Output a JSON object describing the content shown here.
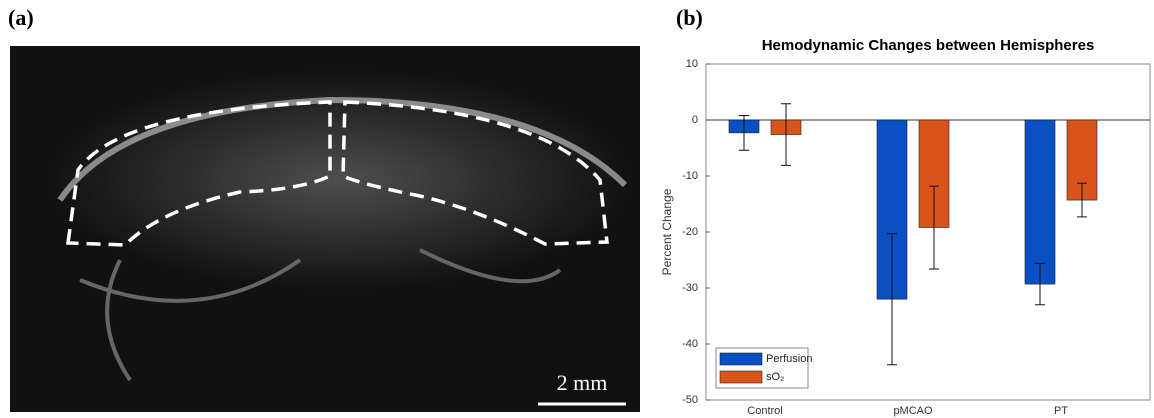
{
  "panel_labels": [
    "(a)",
    "(b)"
  ],
  "image": {
    "scale_bar": "2 mm"
  },
  "chart_data": {
    "type": "bar",
    "title": "Hemodynamic Changes between Hemispheres",
    "y_label": "Percent Change",
    "categories": [
      "Control",
      "pMCAO",
      "PT"
    ],
    "series": [
      {
        "name": "Perfusion",
        "color": "#0b4fc4",
        "values": [
          -2.3,
          -32,
          -29.3
        ],
        "errors": [
          3.1,
          11.7,
          3.7
        ]
      },
      {
        "name": "sO₂",
        "color": "#d9541a",
        "values": [
          -2.6,
          -19.2,
          -14.3
        ],
        "errors": [
          5.5,
          7.4,
          3.0
        ]
      }
    ],
    "ylim": [
      -50,
      10
    ],
    "yticks": [
      -50,
      -40,
      -30,
      -20,
      -10,
      0,
      10
    ],
    "legend": "lower-left"
  }
}
